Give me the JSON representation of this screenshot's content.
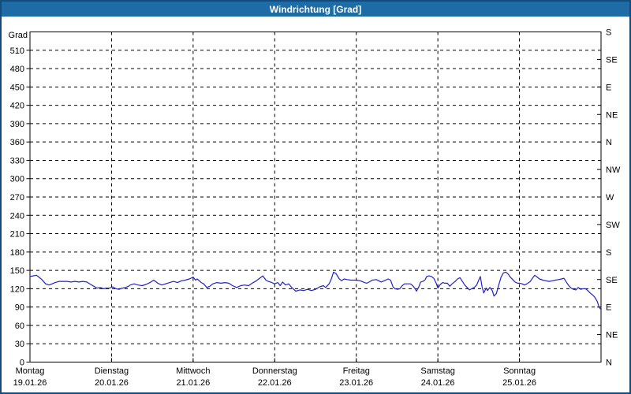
{
  "window": {
    "title": "Windrichtung [Grad]"
  },
  "colors": {
    "header_bg": "#1d6ca6",
    "header_text": "#ffffff",
    "window_border": "#174a7c",
    "line": "#2222cc",
    "axis": "#000000",
    "grid": "#000000",
    "background": "#ffffff",
    "text": "#000000"
  },
  "chart_data": {
    "type": "line",
    "title": "Windrichtung [Grad]",
    "grid": "dashed",
    "y_left": {
      "label": "Grad",
      "min": 0,
      "max": 540,
      "step": 30,
      "labeled_max": 510
    },
    "y_right_compass": [
      {
        "deg": 0,
        "label": "N"
      },
      {
        "deg": 45,
        "label": "NE"
      },
      {
        "deg": 90,
        "label": "E"
      },
      {
        "deg": 135,
        "label": "SE"
      },
      {
        "deg": 180,
        "label": "S"
      },
      {
        "deg": 225,
        "label": "SW"
      },
      {
        "deg": 270,
        "label": "W"
      },
      {
        "deg": 315,
        "label": "NW"
      },
      {
        "deg": 360,
        "label": "N"
      },
      {
        "deg": 405,
        "label": "NE"
      },
      {
        "deg": 450,
        "label": "E"
      },
      {
        "deg": 495,
        "label": "SE"
      },
      {
        "deg": 540,
        "label": "S"
      }
    ],
    "x_axis": {
      "hours_total": 168,
      "days": [
        {
          "name": "Montag",
          "date": "19.01.26"
        },
        {
          "name": "Dienstag",
          "date": "20.01.26"
        },
        {
          "name": "Mittwoch",
          "date": "21.01.26"
        },
        {
          "name": "Donnerstag",
          "date": "22.01.26"
        },
        {
          "name": "Freitag",
          "date": "23.01.26"
        },
        {
          "name": "Samstag",
          "date": "24.01.26"
        },
        {
          "name": "Sonntag",
          "date": "25.01.26"
        }
      ]
    },
    "series": [
      {
        "name": "Windrichtung",
        "unit": "Grad",
        "points": [
          [
            0,
            140
          ],
          [
            0.9,
            141
          ],
          [
            1.9,
            142
          ],
          [
            2.6,
            139
          ],
          [
            3.5,
            135
          ],
          [
            4.6,
            128
          ],
          [
            5.6,
            126
          ],
          [
            6.5,
            128
          ],
          [
            7.4,
            130
          ],
          [
            8.6,
            132
          ],
          [
            9.8,
            132
          ],
          [
            10.9,
            132
          ],
          [
            12.1,
            131
          ],
          [
            13.2,
            132
          ],
          [
            14.4,
            131
          ],
          [
            15.6,
            132
          ],
          [
            16.7,
            131
          ],
          [
            17.9,
            127
          ],
          [
            18.8,
            124
          ],
          [
            19.7,
            121
          ],
          [
            20.7,
            122
          ],
          [
            21.6,
            120
          ],
          [
            22.5,
            121
          ],
          [
            23.4,
            121
          ],
          [
            24.4,
            123
          ],
          [
            25.3,
            120
          ],
          [
            26.2,
            119
          ],
          [
            27.2,
            121
          ],
          [
            28.1,
            122
          ],
          [
            29,
            124
          ],
          [
            29.5,
            126
          ],
          [
            30.6,
            128
          ],
          [
            31.8,
            126
          ],
          [
            33,
            125
          ],
          [
            34.1,
            127
          ],
          [
            35.3,
            130
          ],
          [
            36.4,
            134
          ],
          [
            37.6,
            129
          ],
          [
            38.8,
            126
          ],
          [
            39.9,
            128
          ],
          [
            41.1,
            130
          ],
          [
            42.2,
            132
          ],
          [
            43.4,
            130
          ],
          [
            44.6,
            133
          ],
          [
            45.7,
            134
          ],
          [
            46.9,
            136
          ],
          [
            48,
            139
          ],
          [
            48.7,
            134
          ],
          [
            49.2,
            136
          ],
          [
            50.4,
            130
          ],
          [
            51.1,
            128
          ],
          [
            52,
            122
          ],
          [
            52.9,
            124
          ],
          [
            53.8,
            128
          ],
          [
            55,
            130
          ],
          [
            56.2,
            129
          ],
          [
            57.3,
            130
          ],
          [
            58.5,
            129
          ],
          [
            59.6,
            125
          ],
          [
            60.8,
            122
          ],
          [
            62,
            125
          ],
          [
            63.1,
            126
          ],
          [
            64.3,
            125
          ],
          [
            65.4,
            129
          ],
          [
            66.6,
            133
          ],
          [
            67.8,
            138
          ],
          [
            68.5,
            141
          ],
          [
            69.4,
            134
          ],
          [
            70.1,
            132
          ],
          [
            71.2,
            130
          ],
          [
            71.9,
            128
          ],
          [
            72.9,
            130
          ],
          [
            73.6,
            125
          ],
          [
            74.3,
            131
          ],
          [
            75.2,
            126
          ],
          [
            76.1,
            128
          ],
          [
            77,
            122
          ],
          [
            78.2,
            116
          ],
          [
            79.4,
            118
          ],
          [
            80.5,
            117
          ],
          [
            81.7,
            119
          ],
          [
            82.8,
            117
          ],
          [
            84,
            119
          ],
          [
            85.2,
            123
          ],
          [
            86.3,
            125
          ],
          [
            87,
            122
          ],
          [
            88,
            128
          ],
          [
            88.6,
            135
          ],
          [
            89.3,
            147
          ],
          [
            90,
            145
          ],
          [
            91,
            136
          ],
          [
            91.7,
            133
          ],
          [
            92.4,
            136
          ],
          [
            93.3,
            135
          ],
          [
            94.4,
            134
          ],
          [
            96.1,
            134
          ],
          [
            97.2,
            133
          ],
          [
            98.4,
            130
          ],
          [
            99.1,
            129
          ],
          [
            99.8,
            131
          ],
          [
            100.7,
            134
          ],
          [
            101.9,
            135
          ],
          [
            102.6,
            133
          ],
          [
            103.3,
            131
          ],
          [
            104.2,
            133
          ],
          [
            105.4,
            136
          ],
          [
            106.1,
            134
          ],
          [
            106.8,
            123
          ],
          [
            107.4,
            120
          ],
          [
            108.1,
            119
          ],
          [
            108.8,
            120
          ],
          [
            109.5,
            125
          ],
          [
            110.2,
            128
          ],
          [
            111.2,
            128
          ],
          [
            111.9,
            128
          ],
          [
            112.6,
            125
          ],
          [
            113.3,
            120
          ],
          [
            113.7,
            116
          ],
          [
            114.4,
            123
          ],
          [
            114.9,
            131
          ],
          [
            115.6,
            132
          ],
          [
            116.3,
            135
          ],
          [
            116.7,
            140
          ],
          [
            117.4,
            141
          ],
          [
            118.1,
            140
          ],
          [
            118.8,
            137
          ],
          [
            119.5,
            129
          ],
          [
            120,
            121
          ],
          [
            120.7,
            127
          ],
          [
            121.4,
            130
          ],
          [
            122.1,
            129
          ],
          [
            122.8,
            129
          ],
          [
            123.5,
            124
          ],
          [
            124.2,
            128
          ],
          [
            125.1,
            132
          ],
          [
            125.8,
            136
          ],
          [
            126.5,
            138
          ],
          [
            127.2,
            132
          ],
          [
            127.9,
            126
          ],
          [
            128.6,
            122
          ],
          [
            129.3,
            118
          ],
          [
            130,
            120
          ],
          [
            130.7,
            122
          ],
          [
            131.4,
            126
          ],
          [
            132.1,
            135
          ],
          [
            132.5,
            140
          ],
          [
            133,
            123
          ],
          [
            133.5,
            113
          ],
          [
            134.2,
            121
          ],
          [
            134.6,
            117
          ],
          [
            135.3,
            122
          ],
          [
            136,
            117
          ],
          [
            136.5,
            108
          ],
          [
            137.2,
            112
          ],
          [
            137.9,
            126
          ],
          [
            138.6,
            139
          ],
          [
            139.3,
            146
          ],
          [
            140,
            147
          ],
          [
            140.7,
            144
          ],
          [
            141.3,
            139
          ],
          [
            142,
            135
          ],
          [
            142.7,
            131
          ],
          [
            143.4,
            129
          ],
          [
            144.1,
            129
          ],
          [
            144.8,
            128
          ],
          [
            145.5,
            126
          ],
          [
            146.2,
            128
          ],
          [
            147.2,
            132
          ],
          [
            147.8,
            137
          ],
          [
            148.5,
            142
          ],
          [
            149.2,
            139
          ],
          [
            149.9,
            136
          ],
          [
            150.9,
            134
          ],
          [
            151.8,
            133
          ],
          [
            152.7,
            132
          ],
          [
            153.7,
            133
          ],
          [
            154.6,
            134
          ],
          [
            155.5,
            135
          ],
          [
            156.4,
            136
          ],
          [
            157.1,
            137
          ],
          [
            157.8,
            131
          ],
          [
            158.5,
            125
          ],
          [
            159.2,
            121
          ],
          [
            159.9,
            119
          ],
          [
            160.6,
            118
          ],
          [
            161.3,
            122
          ],
          [
            162,
            119
          ],
          [
            162.7,
            120
          ],
          [
            163.4,
            120
          ],
          [
            164.1,
            117
          ],
          [
            164.8,
            113
          ],
          [
            165.5,
            110
          ],
          [
            166.2,
            106
          ],
          [
            166.9,
            99
          ],
          [
            167.3,
            92
          ],
          [
            167.8,
            87
          ]
        ]
      }
    ]
  }
}
